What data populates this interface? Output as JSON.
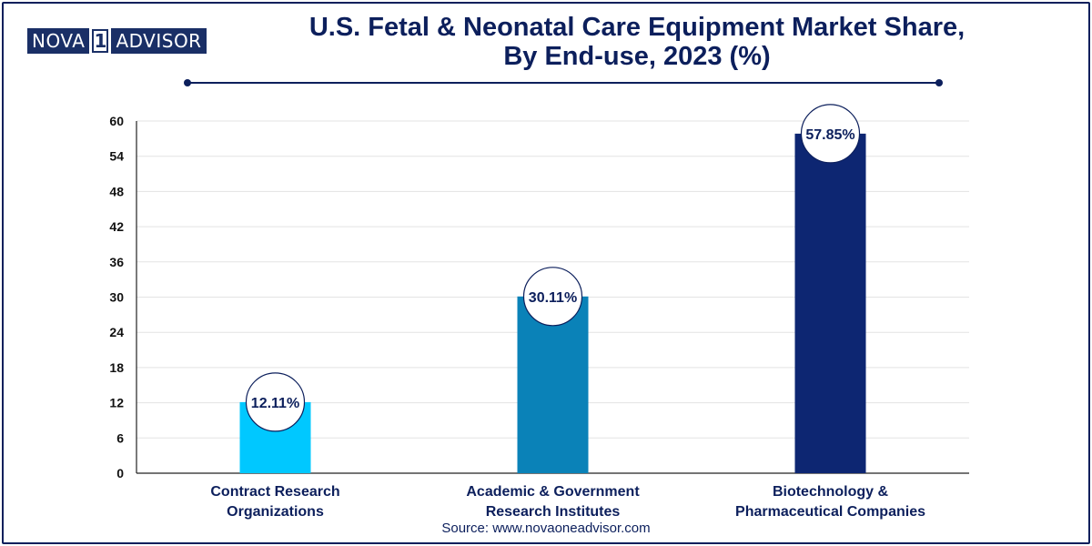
{
  "logo": {
    "left": "NOVA",
    "one": "1",
    "right": "ADVISOR"
  },
  "source": "Source: www.novaoneadvisor.com",
  "chart_data": {
    "type": "bar",
    "title": "U.S. Fetal & Neonatal Care Equipment Market  Share, By End-use, 2023 (%)",
    "title_lines": [
      "U.S. Fetal & Neonatal Care Equipment Market  Share,",
      "By End-use, 2023 (%)"
    ],
    "categories": [
      [
        "Contract Research",
        "Organizations"
      ],
      [
        "Academic & Government",
        "Research Institutes"
      ],
      [
        "Biotechnology &",
        "Pharmaceutical Companies"
      ]
    ],
    "values": [
      12.11,
      30.11,
      57.85
    ],
    "data_labels": [
      "12.11%",
      "30.11%",
      "57.85%"
    ],
    "colors": [
      "#00c8ff",
      "#0a82b8",
      "#0d2672"
    ],
    "ylim": [
      0,
      60
    ],
    "yticks": [
      0,
      6,
      12,
      18,
      24,
      30,
      36,
      42,
      48,
      54,
      60
    ],
    "xlabel": "",
    "ylabel": "",
    "grid": true
  }
}
